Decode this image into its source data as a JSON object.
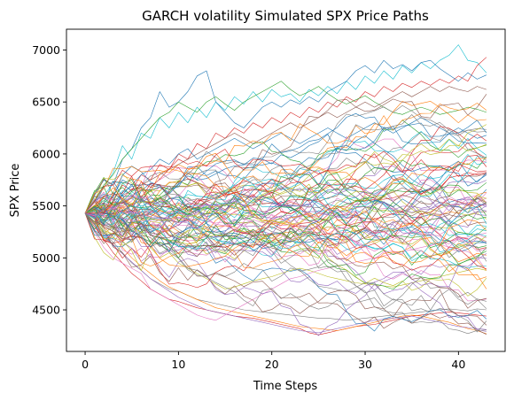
{
  "chart_data": {
    "type": "line",
    "title": "GARCH volatility Simulated SPX Price Paths",
    "xlabel": "Time Steps",
    "ylabel": "SPX Price",
    "xlim": [
      -2,
      45
    ],
    "ylim": [
      4100,
      7200
    ],
    "x_ticks": [
      0,
      10,
      20,
      30,
      40
    ],
    "y_ticks": [
      4500,
      5000,
      5500,
      6000,
      6500,
      7000
    ],
    "grid": false,
    "legend": "none",
    "start_value": 5430,
    "steps": 43,
    "path_count": 100,
    "palette": [
      "#1f77b4",
      "#ff7f0e",
      "#2ca02c",
      "#d62728",
      "#9467bd",
      "#8c564b",
      "#e377c2",
      "#7f7f7f",
      "#bcbd22",
      "#17becf"
    ],
    "series": [
      {
        "color": "#17becf",
        "values": [
          5430,
          5530,
          5680,
          5820,
          6080,
          5950,
          6200,
          6150,
          6350,
          6250,
          6400,
          6300,
          6450,
          6350,
          6500,
          6420,
          6550,
          6480,
          6600,
          6500,
          6620,
          6550,
          6580,
          6500,
          6620,
          6560,
          6650,
          6580,
          6700,
          6620,
          6750,
          6680,
          6800,
          6720,
          6850,
          6780,
          6880,
          6820,
          6900,
          6950,
          7050,
          6900,
          6880,
          6780
        ]
      },
      {
        "color": "#d62728",
        "values": [
          5430,
          5500,
          5600,
          5560,
          5700,
          5650,
          5800,
          5750,
          5900,
          5850,
          6000,
          5950,
          6100,
          6050,
          6200,
          6150,
          6250,
          6200,
          6300,
          6250,
          6350,
          6300,
          6400,
          6350,
          6450,
          6400,
          6500,
          6450,
          6550,
          6500,
          6600,
          6550,
          6650,
          6600,
          6680,
          6640,
          6700,
          6660,
          6720,
          6680,
          6750,
          6700,
          6850,
          6930
        ]
      },
      {
        "color": "#1f77b4",
        "values": [
          5430,
          5600,
          5750,
          5700,
          5950,
          6050,
          6250,
          6350,
          6600,
          6450,
          6500,
          6600,
          6750,
          6800,
          6500,
          6400,
          6300,
          6250,
          6350,
          6450,
          6500,
          6450,
          6520,
          6480,
          6550,
          6500,
          6600,
          6650,
          6700,
          6800,
          6850,
          6780,
          6900,
          6820,
          6860,
          6800,
          6880,
          6900,
          6820,
          6760,
          6700,
          6780,
          6720,
          6760
        ]
      },
      {
        "color": "#2ca02c",
        "values": [
          5430,
          5550,
          5700,
          5800,
          5950,
          6050,
          6150,
          6250,
          6350,
          6400,
          6500,
          6450,
          6400,
          6500,
          6550,
          6480,
          6420,
          6500,
          6550,
          6600,
          6650,
          6700,
          6620,
          6560,
          6600,
          6650,
          6580,
          6520,
          6480,
          6520,
          6560,
          6500,
          6450,
          6400,
          6380,
          6420,
          6450,
          6420,
          6380,
          6400,
          6420,
          6450,
          6430,
          6400
        ]
      },
      {
        "color": "#7f7f7f",
        "values": [
          5430,
          5350,
          5250,
          5150,
          5050,
          4950,
          4880,
          4800,
          4750,
          4700,
          4680,
          4640,
          4600,
          4580,
          4560,
          4540,
          4520,
          4500,
          4490,
          4480,
          4470,
          4460,
          4450,
          4440,
          4430,
          4420,
          4420,
          4410,
          4400,
          4410,
          4420,
          4430,
          4440,
          4450,
          4460,
          4470,
          4480,
          4490,
          4500,
          4510,
          4500,
          4490,
          4510,
          4500
        ]
      },
      {
        "color": "#d62728",
        "values": [
          5430,
          5300,
          5180,
          5050,
          4950,
          4850,
          4780,
          4700,
          4650,
          4600,
          4580,
          4550,
          4520,
          4500,
          4480,
          4460,
          4440,
          4430,
          4420,
          4400,
          4380,
          4360,
          4340,
          4320,
          4280,
          4260,
          4280,
          4300,
          4320,
          4340,
          4350,
          4360,
          4380,
          4400,
          4420,
          4440,
          4450,
          4460,
          4470,
          4480,
          4470,
          4460,
          4450,
          4440
        ]
      },
      {
        "color": "#ff7f0e",
        "values": [
          5430,
          5380,
          5300,
          5200,
          5100,
          5000,
          4920,
          4850,
          4780,
          4720,
          4680,
          4640,
          4600,
          4560,
          4520,
          4500,
          4480,
          4460,
          4440,
          4420,
          4400,
          4380,
          4360,
          4340,
          4330,
          4320,
          4310,
          4300,
          4320,
          4340,
          4360,
          4380,
          4400,
          4420,
          4440,
          4450,
          4440,
          4420,
          4400,
          4380,
          4350,
          4320,
          4300,
          4270
        ]
      },
      {
        "color": "#9467bd",
        "values": [
          5430,
          5320,
          5220,
          5120,
          5040,
          4960,
          4880,
          4800,
          4740,
          4680,
          4620,
          4580,
          4540,
          4500,
          4480,
          4460,
          4440,
          4420,
          4400,
          4380,
          4360,
          4340,
          4320,
          4300,
          4290,
          4280,
          4300,
          4320,
          4340,
          4360,
          4380,
          4400,
          4410,
          4420,
          4430,
          4440,
          4420,
          4400,
          4380,
          4360,
          4340,
          4330,
          4320,
          4310
        ]
      },
      {
        "color": "#bcbd22",
        "values": [
          5430,
          5200,
          5050,
          4980,
          5150,
          5300,
          5250,
          5100,
          5000,
          5050,
          4950,
          4900,
          4850,
          4800,
          4750,
          4700,
          4720,
          4750,
          4780,
          4800,
          4820,
          4850,
          4880,
          4900,
          4880,
          4850,
          4820,
          4800,
          4780,
          4760,
          4750,
          4740,
          4730,
          4720,
          4740,
          4760,
          4780,
          4800,
          4820,
          4840,
          4860,
          4880,
          4900,
          4880
        ]
      },
      {
        "color": "#e377c2",
        "values": [
          5430,
          5250,
          5100,
          5000,
          4950,
          4900,
          4850,
          4700,
          4650,
          4600,
          4550,
          4500,
          4450,
          4420,
          4400,
          4450,
          4500,
          4550,
          4600,
          4650,
          4700,
          4750,
          4800,
          4820,
          4850,
          4880,
          4900,
          4920,
          4940,
          4960,
          4980,
          5000,
          5020,
          5040,
          5060,
          5080,
          5100,
          5120,
          5140,
          5160,
          5180,
          5200,
          5220,
          5240
        ]
      },
      {
        "color": "#1f77b4",
        "values": [
          5430,
          5550,
          5480,
          5600,
          5750,
          5700,
          5800,
          5850,
          5950,
          5900,
          6000,
          6050,
          5950,
          6000,
          6050,
          6100,
          6150,
          6100,
          6050,
          6100,
          6150,
          6200,
          6150,
          6100,
          6150,
          6200,
          6250,
          6200,
          6150,
          6200,
          6250,
          6300,
          6250,
          6200,
          6250,
          6300,
          6350,
          6300,
          6250,
          6200,
          6250,
          6200,
          6150,
          6180
        ]
      },
      {
        "color": "#8c564b",
        "values": [
          5430,
          5500,
          5450,
          5550,
          5600,
          5650,
          5700,
          5750,
          5800,
          5850,
          5900,
          5950,
          6000,
          6050,
          6100,
          6150,
          6200,
          6150,
          6100,
          6150,
          6200,
          6250,
          6300,
          6250,
          6300,
          6350,
          6400,
          6350,
          6400,
          6450,
          6500,
          6450,
          6500,
          6550,
          6600,
          6550,
          6600,
          6650,
          6600,
          6650,
          6620,
          6600,
          6650,
          6620
        ]
      }
    ]
  }
}
